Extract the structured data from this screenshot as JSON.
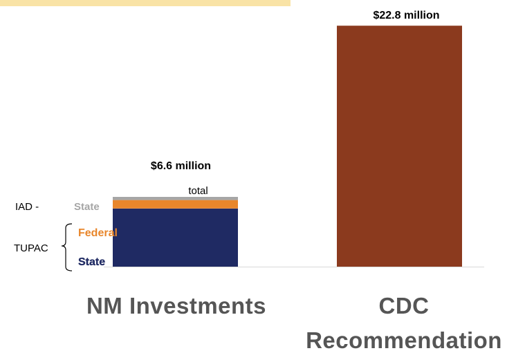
{
  "colors": {
    "top_strip": "#f9e3a6",
    "iad_state": "#a6a6a6",
    "federal": "#e8862b",
    "tupac_state": "#1f2a63",
    "cdc": "#8b3a1e",
    "category_text": "#555555",
    "baseline": "#d9d9d9"
  },
  "chart_data": {
    "type": "bar",
    "unit": "$ million",
    "categories": [
      "NM Investments",
      "CDC Recommendation"
    ],
    "category_label_lines": [
      [
        "NM Investments"
      ],
      [
        "CDC",
        "Recommendation"
      ]
    ],
    "ylim": [
      0,
      24
    ],
    "bars": [
      {
        "category": "NM Investments",
        "total": 6.6,
        "value_label": "$6.6 million",
        "value_label_sub": "total",
        "segments": [
          {
            "name": "State",
            "group": "TUPAC",
            "value": 5.5,
            "color_key": "tupac_state"
          },
          {
            "name": "Federal",
            "group": "TUPAC",
            "value": 0.8,
            "color_key": "federal"
          },
          {
            "name": "State",
            "group": "IAD",
            "value": 0.3,
            "color_key": "iad_state"
          }
        ]
      },
      {
        "category": "CDC Recommendation",
        "total": 22.8,
        "value_label": "$22.8 million",
        "value_label_sub": "",
        "segments": [
          {
            "name": "",
            "group": "",
            "value": 22.8,
            "color_key": "cdc"
          }
        ]
      }
    ],
    "annotations": {
      "iad_prefix": "IAD -",
      "iad_state": "State",
      "tupac": "TUPAC",
      "tupac_federal": "Federal",
      "tupac_state": "State"
    },
    "grid": false,
    "legend": "none"
  }
}
